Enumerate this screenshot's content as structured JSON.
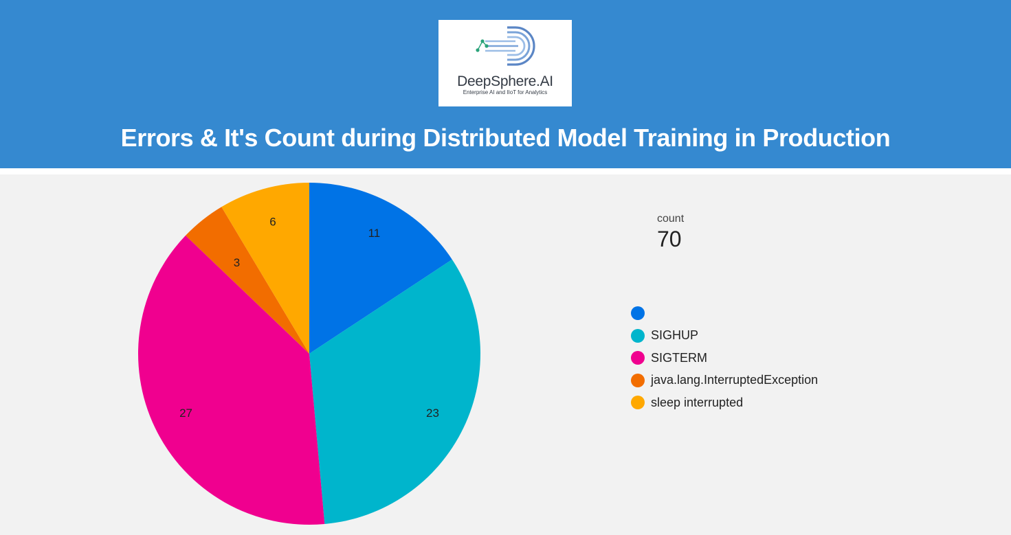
{
  "header": {
    "logo": {
      "name": "DeepSphere.AI",
      "tagline": "Enterprise AI and IIoT for Analytics"
    },
    "title": "Errors & It's Count during Distributed Model Training in Production",
    "background_color": "#3589d0"
  },
  "scorecard": {
    "label": "count",
    "value": "70"
  },
  "chart_data": {
    "type": "pie",
    "total": 70,
    "slices": [
      {
        "label": "",
        "value": 11,
        "color": "#0073e6"
      },
      {
        "label": "SIGHUP",
        "value": 23,
        "color": "#00b5cc"
      },
      {
        "label": "SIGTERM",
        "value": 27,
        "color": "#f0008f"
      },
      {
        "label": "java.lang.InterruptedException",
        "value": 3,
        "color": "#f26d00"
      },
      {
        "label": "sleep interrupted",
        "value": 6,
        "color": "#ffa800"
      }
    ],
    "legend_position": "right"
  }
}
